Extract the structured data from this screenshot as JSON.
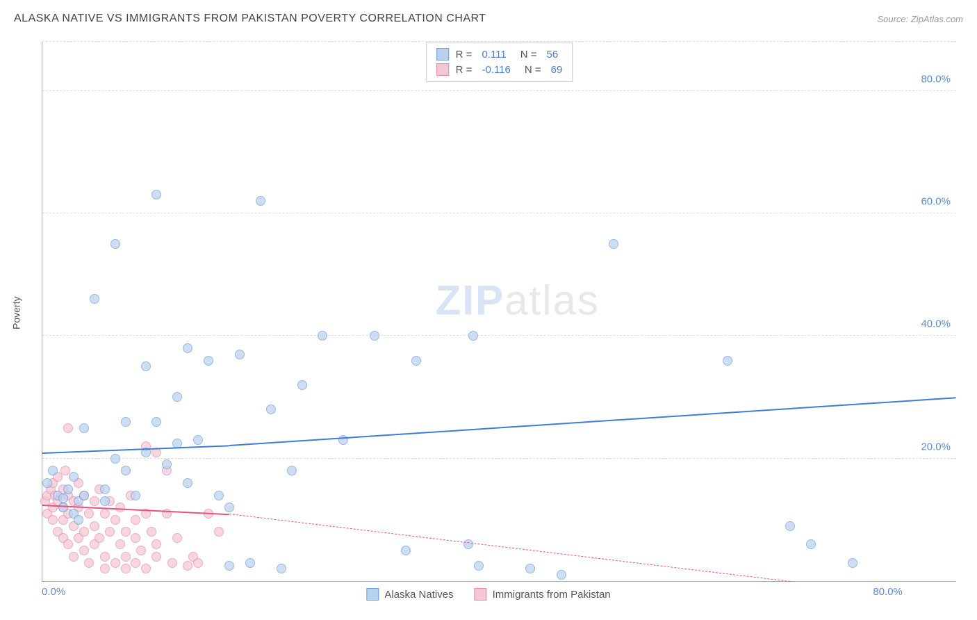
{
  "title": "ALASKA NATIVE VS IMMIGRANTS FROM PAKISTAN POVERTY CORRELATION CHART",
  "source": "Source: ZipAtlas.com",
  "watermark": {
    "part1": "ZIP",
    "part2": "atlas"
  },
  "ylabel": "Poverty",
  "chart": {
    "type": "scatter",
    "background_color": "#ffffff",
    "grid_color": "#dddddd",
    "axis_color": "#aaaaaa",
    "tick_label_color": "#5b8dd6",
    "tick_label_fontsize": 15,
    "xlim": [
      0,
      88
    ],
    "ylim": [
      0,
      88
    ],
    "y_gridlines": [
      20,
      40,
      60,
      80,
      88
    ],
    "y_tick_labels": [
      {
        "value": 20,
        "label": "20.0%"
      },
      {
        "value": 40,
        "label": "40.0%"
      },
      {
        "value": 60,
        "label": "60.0%"
      },
      {
        "value": 80,
        "label": "80.0%"
      }
    ],
    "x_tick_labels": [
      {
        "value": 0,
        "label": "0.0%"
      },
      {
        "value": 80,
        "label": "80.0%"
      }
    ],
    "marker_radius": 7,
    "marker_border_width": 1,
    "series": [
      {
        "name": "Alaska Natives",
        "fill_color": "#b9d1ef",
        "fill_opacity": 0.7,
        "border_color": "#6a9cd8",
        "r_label": "R =",
        "r_value": "0.111",
        "n_label": "N =",
        "n_value": "56",
        "trend": {
          "solid": {
            "x1": 0,
            "y1": 21,
            "x2": 18,
            "y2": 22.2,
            "color": "#3d7dd6",
            "width": 2.5
          },
          "dash": {
            "x1": 18,
            "y1": 22.2,
            "x2": 88,
            "y2": 30,
            "color": "#3d7dd6",
            "width": 2.5
          }
        },
        "points": [
          [
            0.5,
            16
          ],
          [
            1,
            18
          ],
          [
            1.5,
            14
          ],
          [
            2,
            12
          ],
          [
            2,
            13.5
          ],
          [
            2.5,
            15
          ],
          [
            3,
            17
          ],
          [
            3,
            11
          ],
          [
            3.5,
            13
          ],
          [
            4,
            14
          ],
          [
            4,
            25
          ],
          [
            5,
            46
          ],
          [
            6,
            15
          ],
          [
            6,
            13
          ],
          [
            7,
            55
          ],
          [
            7,
            20
          ],
          [
            8,
            26
          ],
          [
            8,
            18
          ],
          [
            9,
            14
          ],
          [
            10,
            21
          ],
          [
            10,
            35
          ],
          [
            11,
            26
          ],
          [
            11,
            63
          ],
          [
            12,
            19
          ],
          [
            13,
            30
          ],
          [
            13,
            22.5
          ],
          [
            14,
            38
          ],
          [
            14,
            16
          ],
          [
            15,
            23
          ],
          [
            16,
            36
          ],
          [
            17,
            14
          ],
          [
            18,
            2.5
          ],
          [
            18,
            12
          ],
          [
            19,
            37
          ],
          [
            20,
            3
          ],
          [
            21,
            62
          ],
          [
            22,
            28
          ],
          [
            23,
            2
          ],
          [
            24,
            18
          ],
          [
            25,
            32
          ],
          [
            27,
            40
          ],
          [
            29,
            23
          ],
          [
            32,
            40
          ],
          [
            35,
            5
          ],
          [
            36,
            36
          ],
          [
            41,
            6
          ],
          [
            42,
            2.5
          ],
          [
            41.5,
            40
          ],
          [
            47,
            2
          ],
          [
            50,
            1
          ],
          [
            55,
            55
          ],
          [
            66,
            36
          ],
          [
            72,
            9
          ],
          [
            74,
            6
          ],
          [
            78,
            3
          ],
          [
            3.5,
            10
          ]
        ]
      },
      {
        "name": "Immigrants from Pakistan",
        "fill_color": "#f5c6d4",
        "fill_opacity": 0.7,
        "border_color": "#e68aa8",
        "r_label": "R =",
        "r_value": "-0.116",
        "n_label": "N =",
        "n_value": "69",
        "trend": {
          "solid": {
            "x1": 0,
            "y1": 12.5,
            "x2": 18,
            "y2": 11,
            "color": "#e6537e",
            "width": 2
          },
          "dash": {
            "x1": 18,
            "y1": 11,
            "x2": 72,
            "y2": 0,
            "color": "#e6537e",
            "width": 1.5
          }
        },
        "points": [
          [
            0.3,
            13
          ],
          [
            0.5,
            14
          ],
          [
            0.5,
            11
          ],
          [
            0.8,
            15
          ],
          [
            1,
            16
          ],
          [
            1,
            12
          ],
          [
            1,
            10
          ],
          [
            1.2,
            14
          ],
          [
            1.5,
            17
          ],
          [
            1.5,
            13
          ],
          [
            1.5,
            8
          ],
          [
            2,
            15
          ],
          [
            2,
            12
          ],
          [
            2,
            10
          ],
          [
            2,
            7
          ],
          [
            2.2,
            18
          ],
          [
            2.5,
            14
          ],
          [
            2.5,
            11
          ],
          [
            2.5,
            6
          ],
          [
            3,
            13
          ],
          [
            3,
            4
          ],
          [
            3,
            9
          ],
          [
            3.5,
            16
          ],
          [
            3.5,
            12
          ],
          [
            3.5,
            7
          ],
          [
            4,
            14
          ],
          [
            4,
            8
          ],
          [
            4,
            5
          ],
          [
            4.5,
            11
          ],
          [
            4.5,
            3
          ],
          [
            5,
            13
          ],
          [
            5,
            6
          ],
          [
            5,
            9
          ],
          [
            5.5,
            15
          ],
          [
            5.5,
            7
          ],
          [
            6,
            11
          ],
          [
            6,
            4
          ],
          [
            6,
            2
          ],
          [
            6.5,
            8
          ],
          [
            6.5,
            13
          ],
          [
            7,
            10
          ],
          [
            7,
            3
          ],
          [
            7.5,
            6
          ],
          [
            7.5,
            12
          ],
          [
            8,
            8
          ],
          [
            8,
            2
          ],
          [
            8,
            4
          ],
          [
            8.5,
            14
          ],
          [
            9,
            7
          ],
          [
            9,
            10
          ],
          [
            9,
            3
          ],
          [
            9.5,
            5
          ],
          [
            10,
            11
          ],
          [
            10,
            2
          ],
          [
            10,
            22
          ],
          [
            10.5,
            8
          ],
          [
            11,
            21
          ],
          [
            11,
            4
          ],
          [
            11,
            6
          ],
          [
            12,
            11
          ],
          [
            12,
            18
          ],
          [
            12.5,
            3
          ],
          [
            13,
            7
          ],
          [
            14,
            2.5
          ],
          [
            14.5,
            4
          ],
          [
            15,
            3
          ],
          [
            16,
            11
          ],
          [
            17,
            8
          ],
          [
            2.5,
            25
          ]
        ]
      }
    ]
  },
  "bottom_legend": [
    {
      "label": "Alaska Natives",
      "fill": "#b9d1ef",
      "border": "#6a9cd8"
    },
    {
      "label": "Immigrants from Pakistan",
      "fill": "#f5c6d4",
      "border": "#e68aa8"
    }
  ]
}
